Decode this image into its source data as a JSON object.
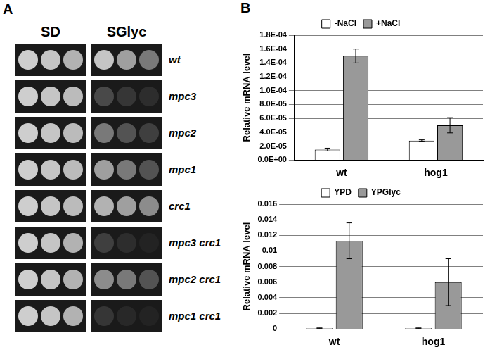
{
  "panel_a": {
    "label": "A",
    "media": [
      "SD",
      "SGlyc"
    ],
    "strains": [
      "wt",
      "mpc3",
      "mpc2",
      "mpc1",
      "crc1",
      "mpc3 crc1",
      "mpc2 crc1",
      "mpc1 crc1"
    ],
    "growth": {
      "SD": [
        [
          0.95,
          0.9,
          0.8
        ],
        [
          0.95,
          0.9,
          0.85
        ],
        [
          0.95,
          0.9,
          0.85
        ],
        [
          0.95,
          0.9,
          0.85
        ],
        [
          0.95,
          0.9,
          0.85
        ],
        [
          0.95,
          0.9,
          0.8
        ],
        [
          0.95,
          0.9,
          0.8
        ],
        [
          0.95,
          0.9,
          0.8
        ]
      ],
      "SGlyc": [
        [
          0.9,
          0.7,
          0.5
        ],
        [
          0.25,
          0.15,
          0.1
        ],
        [
          0.5,
          0.3,
          0.2
        ],
        [
          0.7,
          0.5,
          0.3
        ],
        [
          0.8,
          0.7,
          0.6
        ],
        [
          0.2,
          0.1,
          0.05
        ],
        [
          0.6,
          0.5,
          0.3
        ],
        [
          0.15,
          0.08,
          0.05
        ]
      ]
    }
  },
  "panel_b_label": "B",
  "chart_data": [
    {
      "type": "bar",
      "y_label": "Relative mRNA level",
      "categories": [
        "wt",
        "hog1"
      ],
      "series": [
        {
          "name": "-NaCl",
          "color": "#ffffff",
          "values": [
            1.5e-05,
            2.8e-05
          ],
          "errors": [
            2e-06,
            1e-06
          ]
        },
        {
          "name": "+NaCl",
          "color": "#999999",
          "values": [
            0.00015,
            5e-05
          ],
          "errors": [
            1e-05,
            1.1e-05
          ]
        }
      ],
      "ylim": [
        0,
        0.00018
      ],
      "yticks": [
        {
          "value": 0,
          "label": "0.0E+00"
        },
        {
          "value": 2e-05,
          "label": "2.0E-05"
        },
        {
          "value": 4e-05,
          "label": "4.0E-05"
        },
        {
          "value": 6e-05,
          "label": "6.0E-05"
        },
        {
          "value": 8e-05,
          "label": "8.0E-05"
        },
        {
          "value": 0.0001,
          "label": "1.0E-04"
        },
        {
          "value": 0.00012,
          "label": "1.2E-04"
        },
        {
          "value": 0.00014,
          "label": "1.4E-04"
        },
        {
          "value": 0.00016,
          "label": "1.6E-04"
        },
        {
          "value": 0.00018,
          "label": "1.8E-04"
        }
      ],
      "grid": true,
      "legend": "top"
    },
    {
      "type": "bar",
      "y_label": "Relative mRNA level",
      "categories": [
        "wt",
        "hog1"
      ],
      "series": [
        {
          "name": "YPD",
          "color": "#ffffff",
          "values": [
            0.0001,
            0.0001
          ],
          "errors": [
            2e-05,
            2e-05
          ]
        },
        {
          "name": "YPGlyc",
          "color": "#999999",
          "values": [
            0.0113,
            0.006
          ],
          "errors": [
            0.0023,
            0.003
          ]
        }
      ],
      "ylim": [
        0,
        0.016
      ],
      "yticks": [
        0,
        0.002,
        0.004,
        0.006,
        0.008,
        0.01,
        0.012,
        0.014,
        0.016
      ],
      "grid": true,
      "legend": "top"
    }
  ]
}
